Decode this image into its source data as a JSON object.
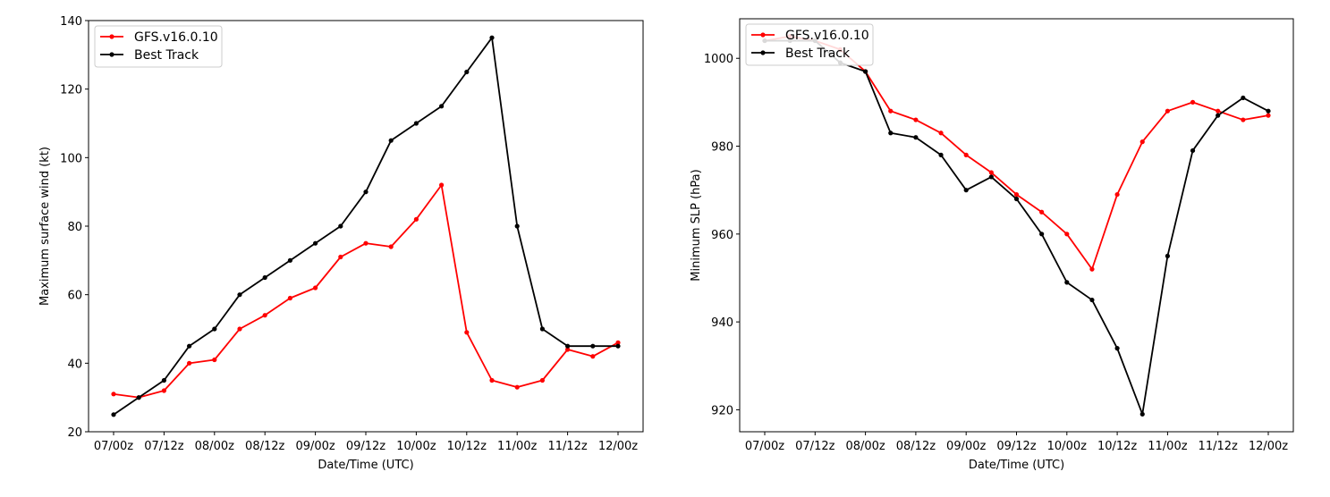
{
  "chart_data": [
    {
      "type": "line",
      "title": "",
      "xlabel": "Date/Time (UTC)",
      "ylabel": "Maximum surface wind (kt)",
      "categories": [
        "07/00z",
        "07/06z",
        "07/12z",
        "07/18z",
        "08/00z",
        "08/06z",
        "08/12z",
        "08/18z",
        "09/00z",
        "09/06z",
        "09/12z",
        "09/18z",
        "10/00z",
        "10/06z",
        "10/12z",
        "10/18z",
        "11/00z",
        "11/06z",
        "11/12z",
        "11/18z",
        "12/00z"
      ],
      "xticks": [
        "07/00z",
        "07/12z",
        "08/00z",
        "08/12z",
        "09/00z",
        "09/12z",
        "10/00z",
        "10/12z",
        "11/00z",
        "11/12z",
        "12/00z"
      ],
      "yticks": [
        20,
        40,
        60,
        80,
        100,
        120,
        140
      ],
      "ylim": [
        20,
        140
      ],
      "grid": false,
      "legend": "top-left",
      "series": [
        {
          "name": "GFS.v16.0.10",
          "color": "#ff0000",
          "values": [
            31,
            30,
            32,
            40,
            41,
            50,
            54,
            59,
            62,
            71,
            75,
            74,
            82,
            92,
            49,
            35,
            33,
            35,
            44,
            42,
            46
          ]
        },
        {
          "name": "Best Track",
          "color": "#000000",
          "values": [
            25,
            30,
            35,
            45,
            50,
            60,
            65,
            70,
            75,
            80,
            90,
            105,
            110,
            115,
            125,
            135,
            80,
            50,
            45,
            45,
            45
          ]
        }
      ]
    },
    {
      "type": "line",
      "title": "",
      "xlabel": "Date/Time (UTC)",
      "ylabel": "Minimum SLP (hPa)",
      "categories": [
        "07/00z",
        "07/06z",
        "07/12z",
        "07/18z",
        "08/00z",
        "08/06z",
        "08/12z",
        "08/18z",
        "09/00z",
        "09/06z",
        "09/12z",
        "09/18z",
        "10/00z",
        "10/06z",
        "10/12z",
        "10/18z",
        "11/00z",
        "11/06z",
        "11/12z",
        "11/18z",
        "12/00z"
      ],
      "xticks": [
        "07/00z",
        "07/12z",
        "08/00z",
        "08/12z",
        "09/00z",
        "09/12z",
        "10/00z",
        "10/12z",
        "11/00z",
        "11/12z",
        "12/00z"
      ],
      "yticks": [
        920,
        940,
        960,
        980,
        1000
      ],
      "ylim": [
        915,
        1009
      ],
      "grid": false,
      "legend": "top-left",
      "series": [
        {
          "name": "GFS.v16.0.10",
          "color": "#ff0000",
          "values": [
            1004,
            1005,
            1004,
            1002,
            997,
            988,
            986,
            983,
            978,
            974,
            969,
            965,
            960,
            952,
            969,
            981,
            988,
            990,
            988,
            986,
            987
          ]
        },
        {
          "name": "Best Track",
          "color": "#000000",
          "values": [
            1004,
            1004,
            1004,
            999,
            997,
            983,
            982,
            978,
            970,
            973,
            968,
            960,
            949,
            945,
            934,
            919,
            955,
            979,
            987,
            991,
            988
          ]
        }
      ]
    }
  ]
}
